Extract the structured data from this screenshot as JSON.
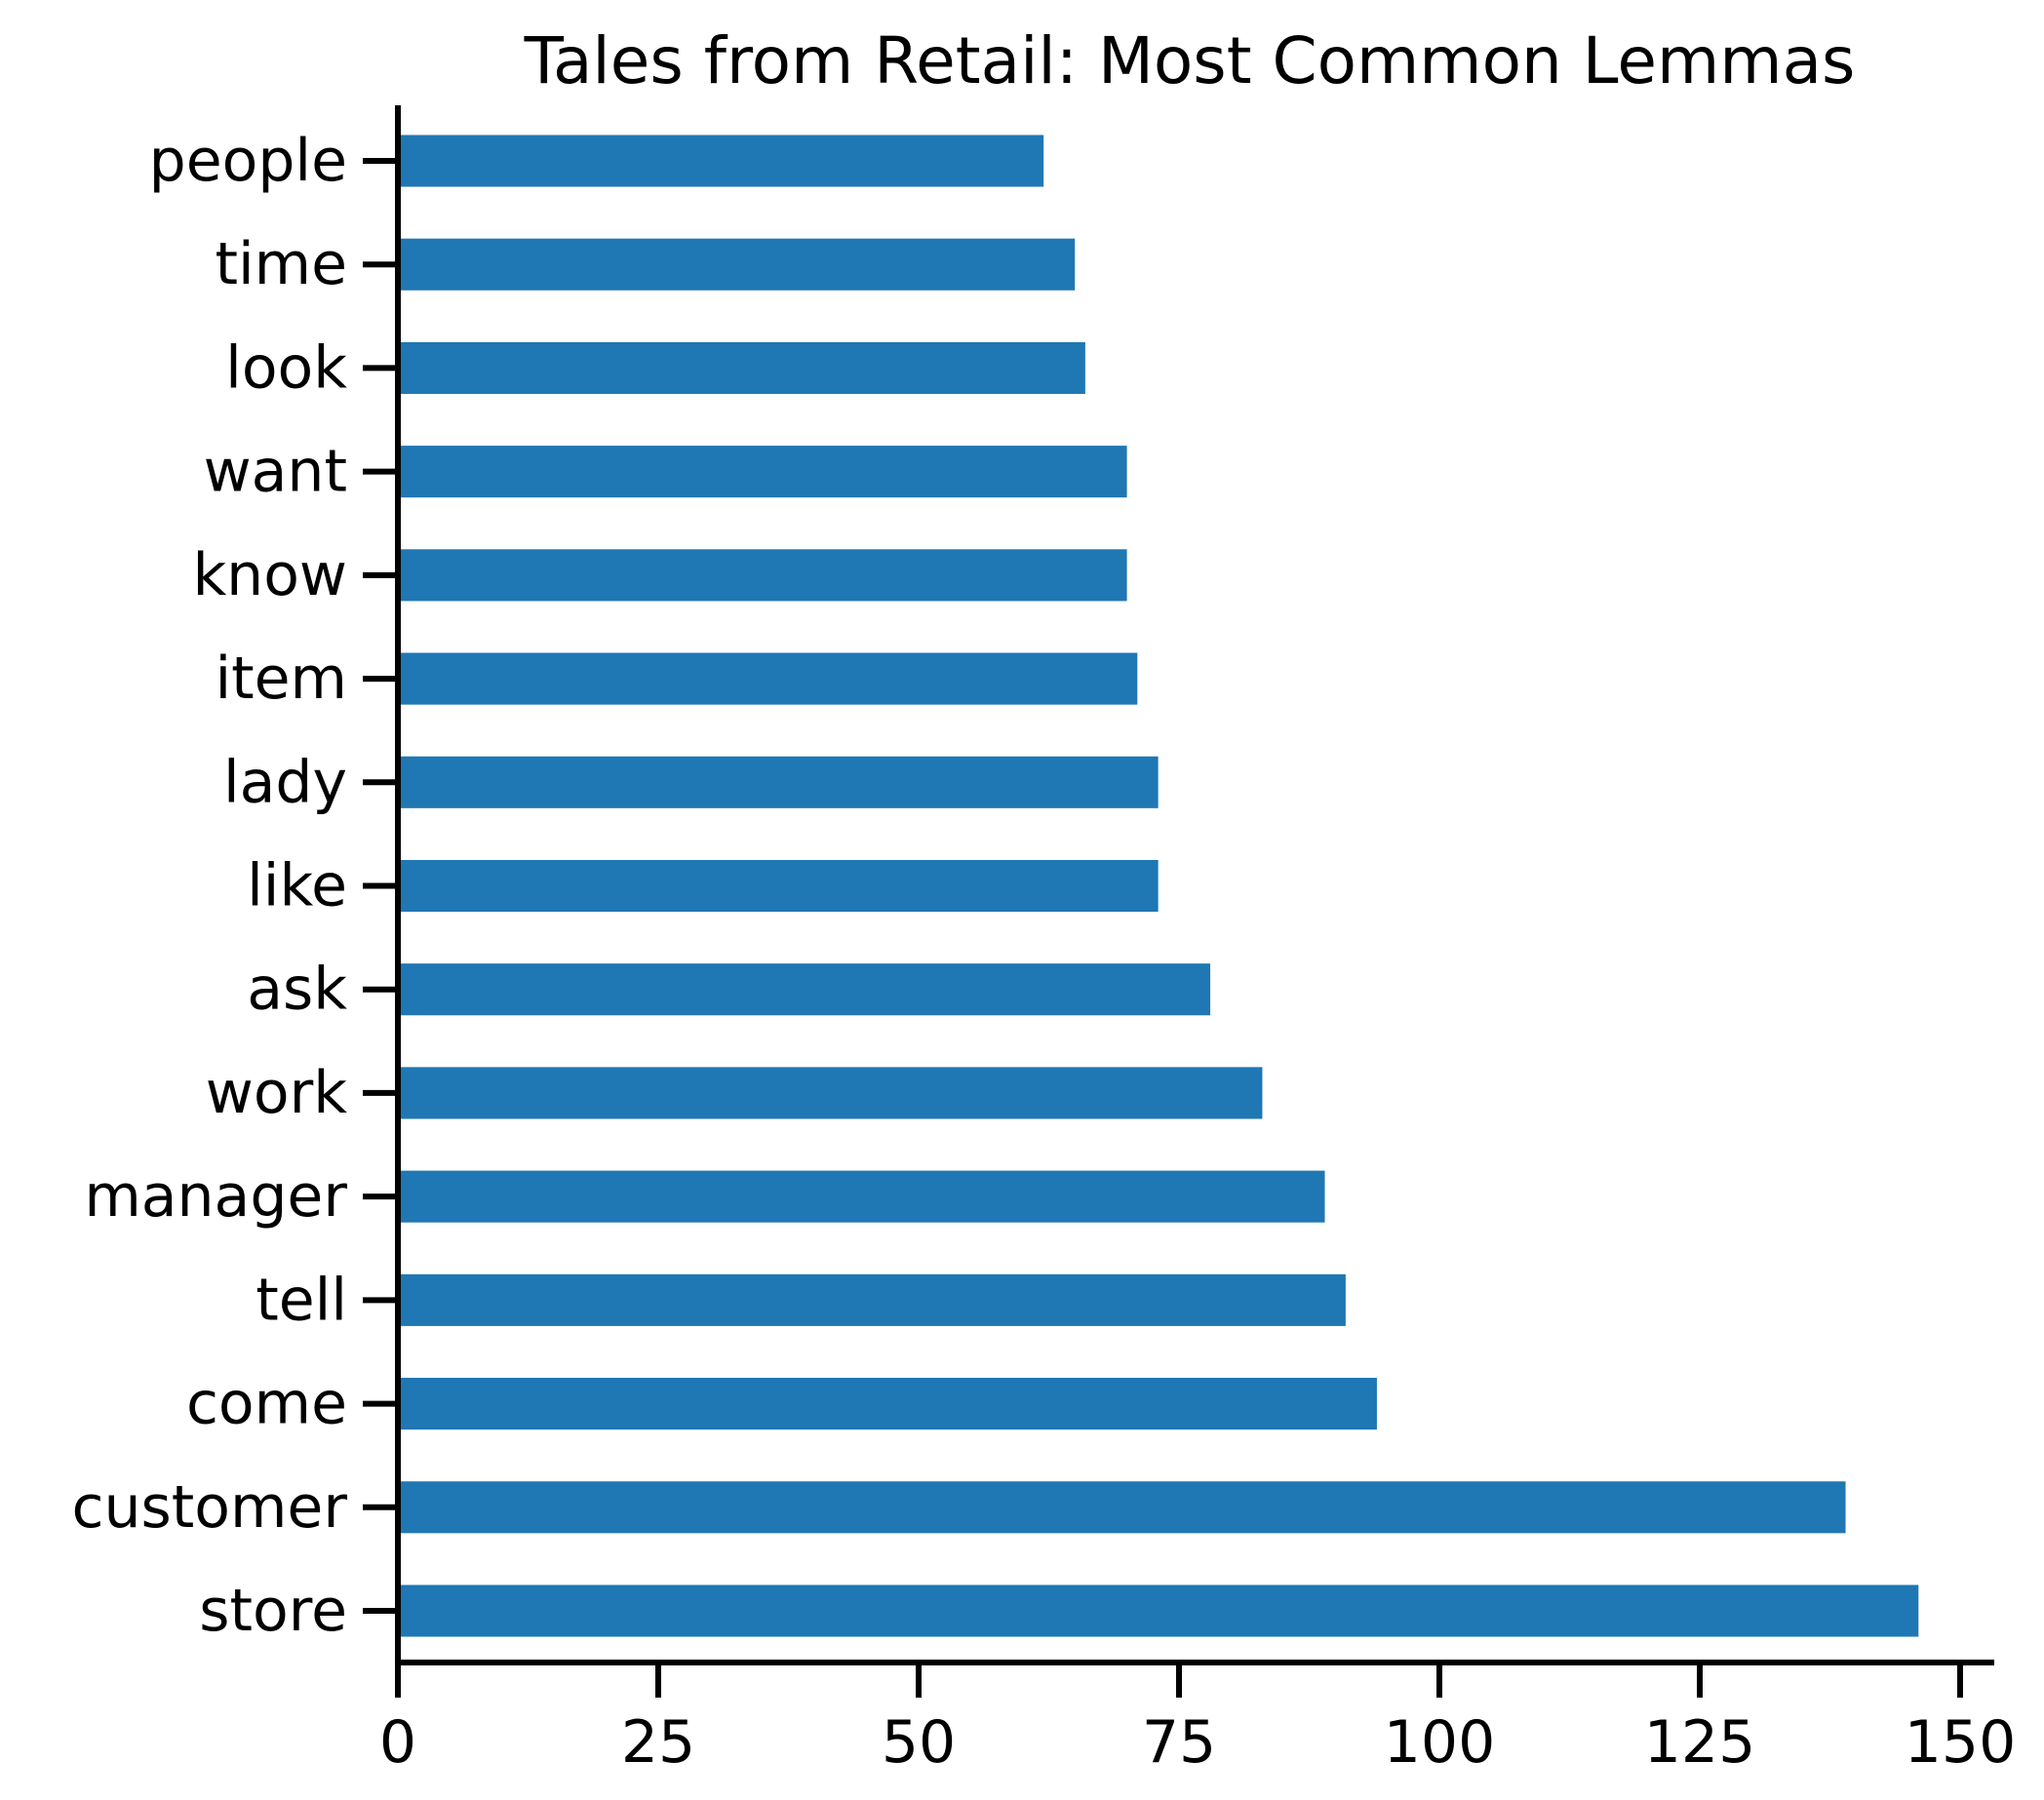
{
  "chart_data": {
    "type": "bar",
    "orientation": "horizontal",
    "title": "Tales from Retail: Most Common Lemmas",
    "xlabel": "",
    "ylabel": "",
    "categories": [
      "store",
      "customer",
      "come",
      "tell",
      "manager",
      "work",
      "ask",
      "like",
      "lady",
      "item",
      "know",
      "want",
      "look",
      "time",
      "people"
    ],
    "values": [
      146,
      139,
      94,
      91,
      89,
      83,
      78,
      73,
      73,
      71,
      70,
      70,
      66,
      65,
      62
    ],
    "xlim": [
      0,
      154
    ],
    "xticks": [
      0,
      25,
      50,
      75,
      100,
      125,
      150
    ],
    "grid": false,
    "bar_color": "#1f77b4"
  }
}
